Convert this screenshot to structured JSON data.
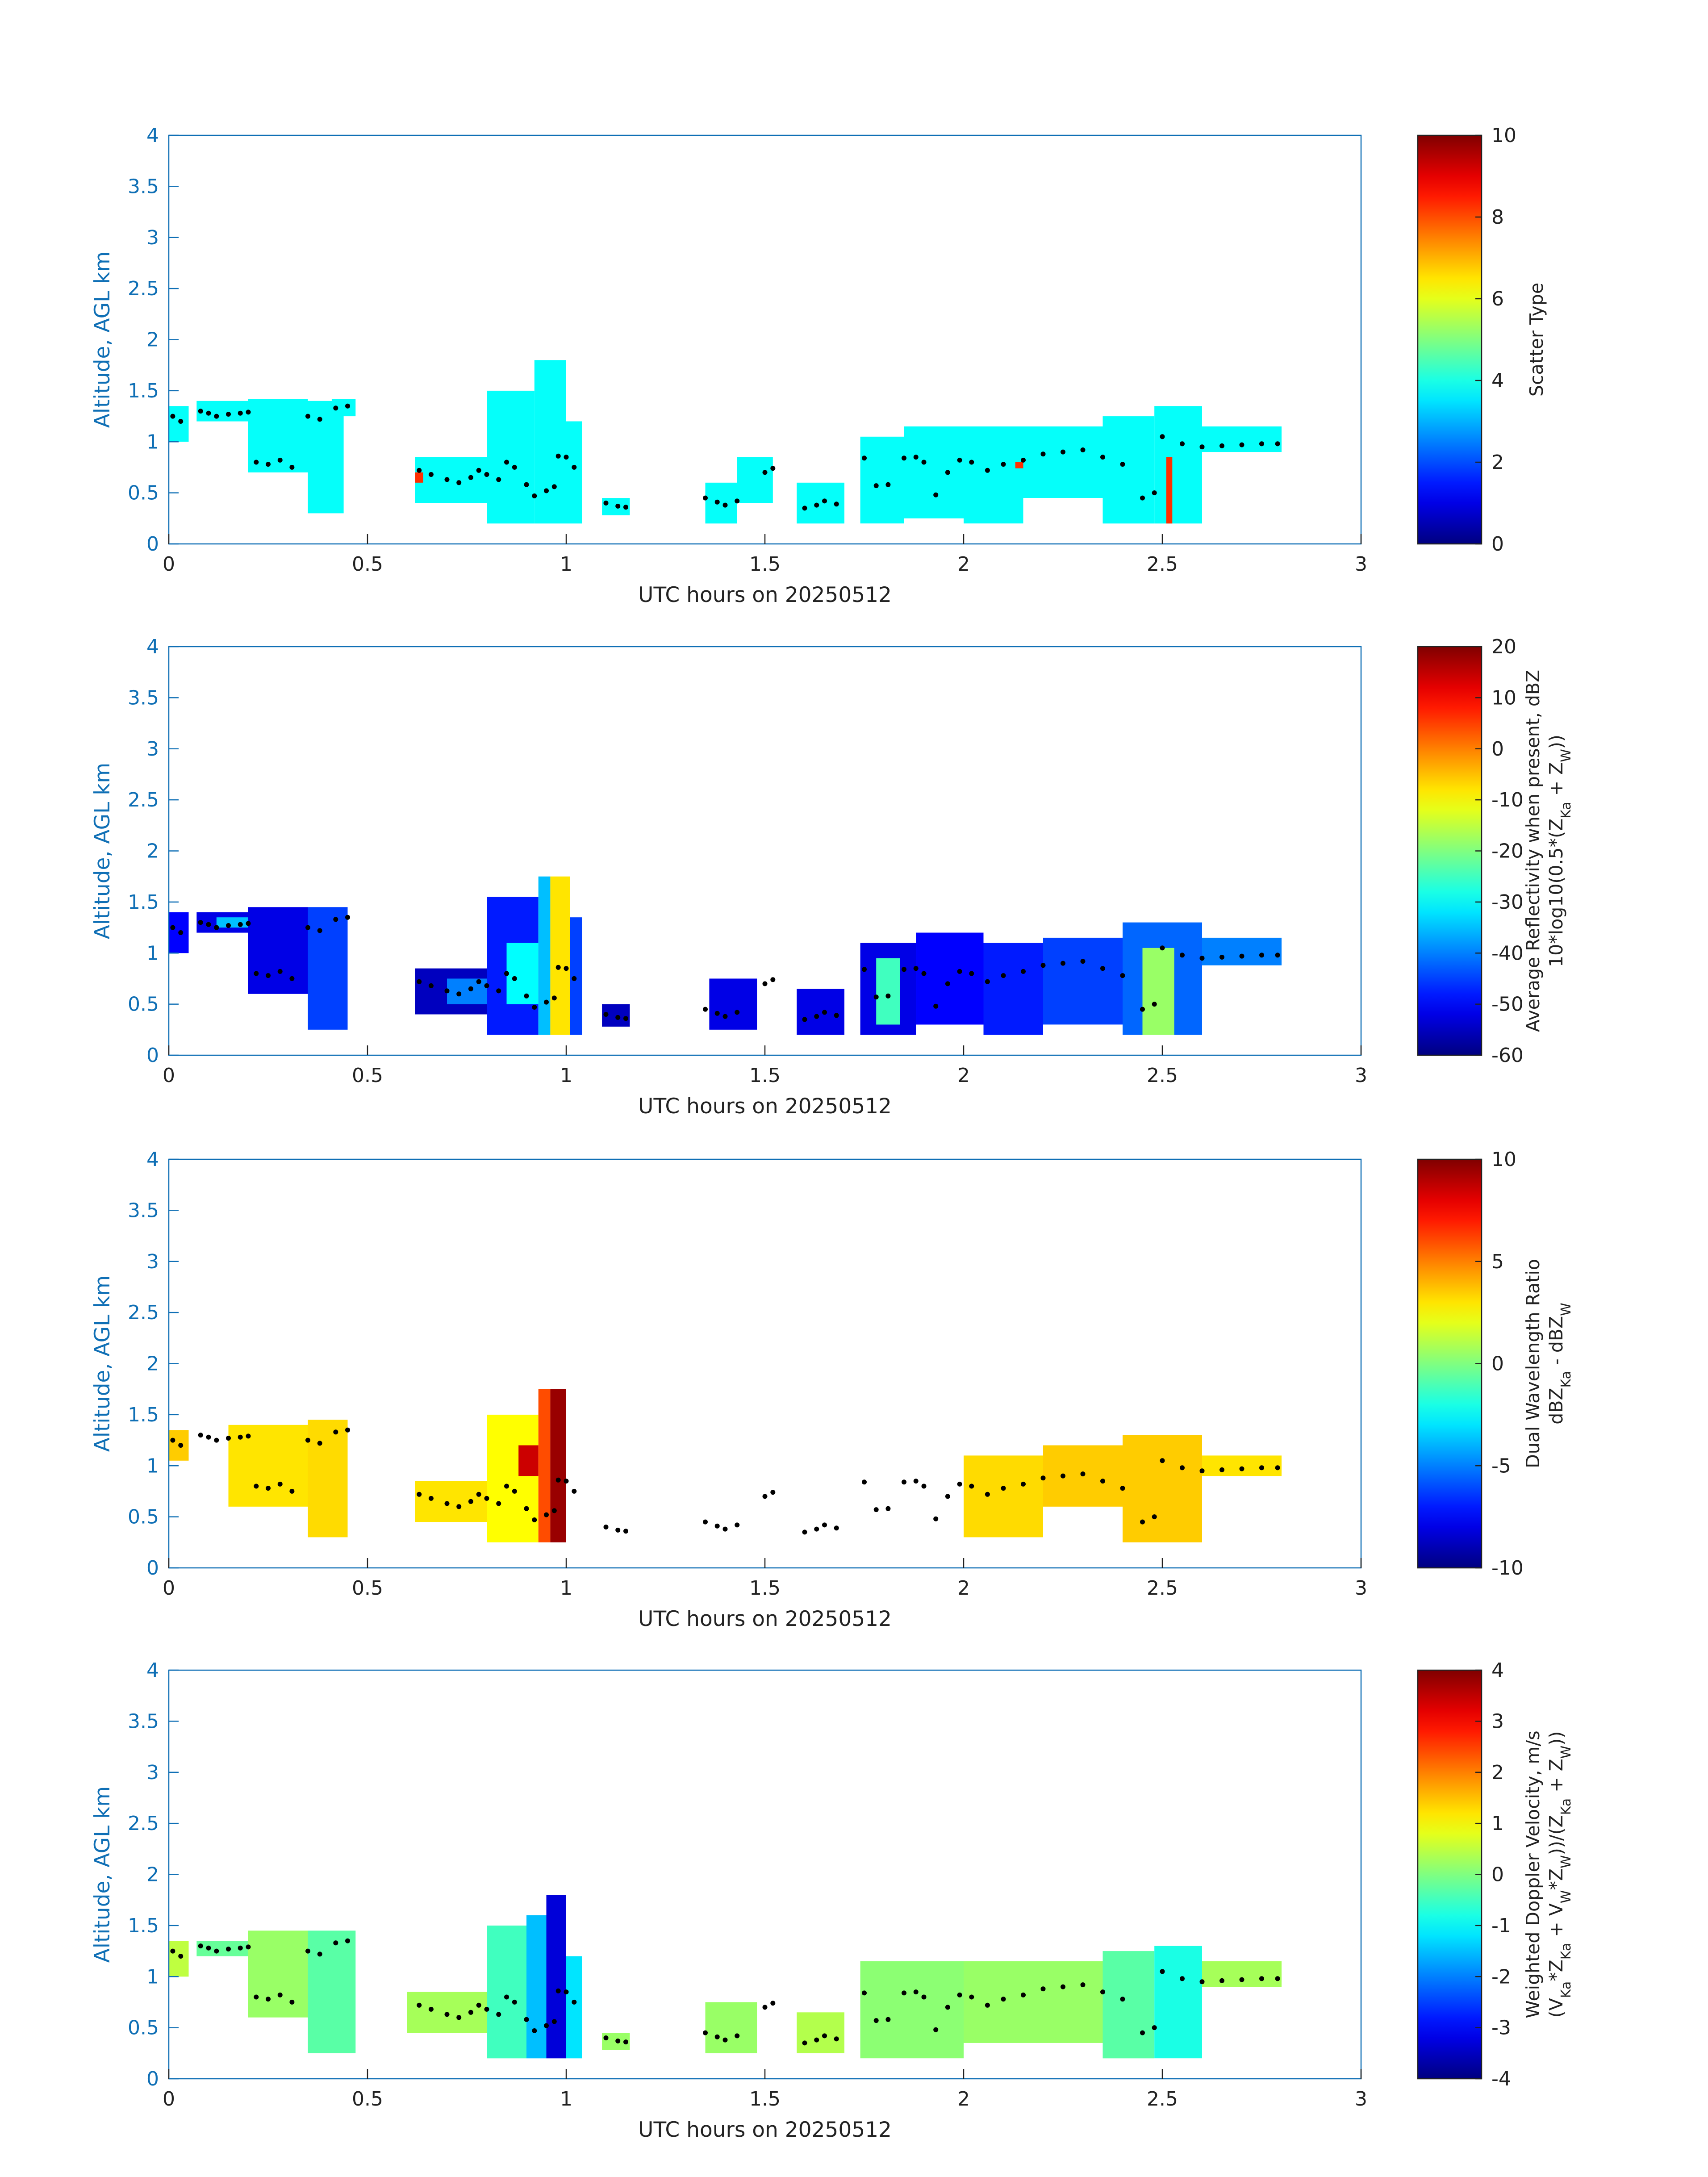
{
  "colors": {
    "axis": "#0f6fb5",
    "text": "#222222",
    "flight_marker": "#000000"
  },
  "chart_data": [
    {
      "type": "heatmap",
      "title": "",
      "xlabel": "UTC hours on 20250512",
      "ylabel": "Altitude, AGL km",
      "xlim": [
        0,
        3
      ],
      "ylim": [
        0,
        4
      ],
      "xticks": [
        "0",
        "0.5",
        "1",
        "1.5",
        "2",
        "2.5",
        "3"
      ],
      "yticks": [
        "0",
        "0.5",
        "1",
        "1.5",
        "2",
        "2.5",
        "3",
        "3.5",
        "4"
      ],
      "colorbar": {
        "label_lines": [
          "Scatter Type"
        ],
        "range": [
          0,
          10
        ],
        "ticks": [
          "0",
          "2",
          "4",
          "6",
          "8",
          "10"
        ],
        "colormap": "jet"
      },
      "regions": [
        {
          "x": [
            0.0,
            0.05
          ],
          "y": [
            1.0,
            1.35
          ],
          "value": 3.8
        },
        {
          "x": [
            0.07,
            0.2
          ],
          "y": [
            1.2,
            1.4
          ],
          "value": 3.8
        },
        {
          "x": [
            0.2,
            0.35
          ],
          "y": [
            0.7,
            1.42
          ],
          "value": 3.8
        },
        {
          "x": [
            0.35,
            0.44
          ],
          "y": [
            0.3,
            1.4
          ],
          "value": 3.8
        },
        {
          "x": [
            0.41,
            0.47
          ],
          "y": [
            1.25,
            1.42
          ],
          "value": 3.8
        },
        {
          "x": [
            0.62,
            0.8
          ],
          "y": [
            0.4,
            0.85
          ],
          "value": 3.8
        },
        {
          "x": [
            0.62,
            0.64
          ],
          "y": [
            0.6,
            0.7
          ],
          "value": 8.3
        },
        {
          "x": [
            0.8,
            0.92
          ],
          "y": [
            0.2,
            1.5
          ],
          "value": 3.8
        },
        {
          "x": [
            0.92,
            1.0
          ],
          "y": [
            0.2,
            1.8
          ],
          "value": 3.8
        },
        {
          "x": [
            1.0,
            1.04
          ],
          "y": [
            0.2,
            1.2
          ],
          "value": 3.8
        },
        {
          "x": [
            1.09,
            1.16
          ],
          "y": [
            0.28,
            0.45
          ],
          "value": 3.8
        },
        {
          "x": [
            1.35,
            1.43
          ],
          "y": [
            0.2,
            0.6
          ],
          "value": 3.8
        },
        {
          "x": [
            1.43,
            1.52
          ],
          "y": [
            0.4,
            0.85
          ],
          "value": 3.8
        },
        {
          "x": [
            1.58,
            1.7
          ],
          "y": [
            0.2,
            0.6
          ],
          "value": 3.8
        },
        {
          "x": [
            1.74,
            1.85
          ],
          "y": [
            0.2,
            1.05
          ],
          "value": 3.8
        },
        {
          "x": [
            1.85,
            2.0
          ],
          "y": [
            0.25,
            1.15
          ],
          "value": 3.8
        },
        {
          "x": [
            2.0,
            2.15
          ],
          "y": [
            0.2,
            1.15
          ],
          "value": 3.8
        },
        {
          "x": [
            2.13,
            2.15
          ],
          "y": [
            0.74,
            0.8
          ],
          "value": 8.3
        },
        {
          "x": [
            2.15,
            2.35
          ],
          "y": [
            0.45,
            1.15
          ],
          "value": 3.8
        },
        {
          "x": [
            2.35,
            2.48
          ],
          "y": [
            0.2,
            1.25
          ],
          "value": 3.8
        },
        {
          "x": [
            2.48,
            2.6
          ],
          "y": [
            0.2,
            1.35
          ],
          "value": 3.8
        },
        {
          "x": [
            2.51,
            2.525
          ],
          "y": [
            0.2,
            0.85
          ],
          "value": 8.3
        },
        {
          "x": [
            2.6,
            2.8
          ],
          "y": [
            0.9,
            1.15
          ],
          "value": 3.8
        }
      ]
    },
    {
      "type": "heatmap",
      "title": "",
      "xlabel": "UTC hours on 20250512",
      "ylabel": "Altitude, AGL km",
      "xlim": [
        0,
        3
      ],
      "ylim": [
        0,
        4
      ],
      "xticks": [
        "0",
        "0.5",
        "1",
        "1.5",
        "2",
        "2.5",
        "3"
      ],
      "yticks": [
        "0",
        "0.5",
        "1",
        "1.5",
        "2",
        "2.5",
        "3",
        "3.5",
        "4"
      ],
      "colorbar": {
        "label_lines": [
          "Average Reflectivity when present, dBZ",
          "10*log10(0.5*(Z",
          "Ka",
          " + Z",
          "W",
          "))"
        ],
        "range": [
          -60,
          20
        ],
        "ticks": [
          "-60",
          "-50",
          "-40",
          "-30",
          "-20",
          "-10",
          "0",
          "10",
          "20"
        ],
        "colormap": "jet"
      },
      "regions": [
        {
          "x": [
            0.0,
            0.05
          ],
          "y": [
            1.0,
            1.4
          ],
          "value": -50
        },
        {
          "x": [
            0.07,
            0.2
          ],
          "y": [
            1.2,
            1.4
          ],
          "value": -52
        },
        {
          "x": [
            0.12,
            0.25
          ],
          "y": [
            1.25,
            1.35
          ],
          "value": -35
        },
        {
          "x": [
            0.2,
            0.35
          ],
          "y": [
            0.6,
            1.45
          ],
          "value": -52
        },
        {
          "x": [
            0.35,
            0.45
          ],
          "y": [
            0.25,
            1.45
          ],
          "value": -45
        },
        {
          "x": [
            0.62,
            0.8
          ],
          "y": [
            0.4,
            0.85
          ],
          "value": -55
        },
        {
          "x": [
            0.7,
            0.8
          ],
          "y": [
            0.5,
            0.75
          ],
          "value": -40
        },
        {
          "x": [
            0.8,
            0.93
          ],
          "y": [
            0.2,
            1.55
          ],
          "value": -48
        },
        {
          "x": [
            0.85,
            0.93
          ],
          "y": [
            0.5,
            1.1
          ],
          "value": -30
        },
        {
          "x": [
            0.93,
            0.96
          ],
          "y": [
            0.2,
            1.75
          ],
          "value": -35
        },
        {
          "x": [
            0.96,
            1.01
          ],
          "y": [
            0.2,
            1.75
          ],
          "value": -8
        },
        {
          "x": [
            1.01,
            1.04
          ],
          "y": [
            0.2,
            1.35
          ],
          "value": -45
        },
        {
          "x": [
            1.09,
            1.16
          ],
          "y": [
            0.28,
            0.5
          ],
          "value": -55
        },
        {
          "x": [
            1.36,
            1.48
          ],
          "y": [
            0.25,
            0.75
          ],
          "value": -52
        },
        {
          "x": [
            1.58,
            1.7
          ],
          "y": [
            0.2,
            0.65
          ],
          "value": -52
        },
        {
          "x": [
            1.74,
            1.88
          ],
          "y": [
            0.2,
            1.1
          ],
          "value": -52
        },
        {
          "x": [
            1.78,
            1.84
          ],
          "y": [
            0.3,
            0.95
          ],
          "value": -25
        },
        {
          "x": [
            1.88,
            2.05
          ],
          "y": [
            0.3,
            1.2
          ],
          "value": -50
        },
        {
          "x": [
            2.05,
            2.2
          ],
          "y": [
            0.2,
            1.1
          ],
          "value": -48
        },
        {
          "x": [
            2.2,
            2.4
          ],
          "y": [
            0.3,
            1.15
          ],
          "value": -45
        },
        {
          "x": [
            2.4,
            2.6
          ],
          "y": [
            0.2,
            1.3
          ],
          "value": -42
        },
        {
          "x": [
            2.45,
            2.53
          ],
          "y": [
            0.2,
            1.05
          ],
          "value": -18
        },
        {
          "x": [
            2.6,
            2.8
          ],
          "y": [
            0.88,
            1.15
          ],
          "value": -40
        }
      ]
    },
    {
      "type": "heatmap",
      "title": "",
      "xlabel": "UTC hours on 20250512",
      "ylabel": "Altitude, AGL km",
      "xlim": [
        0,
        3
      ],
      "ylim": [
        0,
        4
      ],
      "xticks": [
        "0",
        "0.5",
        "1",
        "1.5",
        "2",
        "2.5",
        "3"
      ],
      "yticks": [
        "0",
        "0.5",
        "1",
        "1.5",
        "2",
        "2.5",
        "3",
        "3.5",
        "4"
      ],
      "colorbar": {
        "label_lines": [
          "Dual Wavelength Ratio",
          "dBZ",
          "Ka",
          " - dBZ",
          "W"
        ],
        "range": [
          -10,
          10
        ],
        "ticks": [
          "-10",
          "-5",
          "0",
          "5",
          "10"
        ],
        "colormap": "jet"
      },
      "regions": [
        {
          "x": [
            0.0,
            0.05
          ],
          "y": [
            1.05,
            1.35
          ],
          "value": 3.5
        },
        {
          "x": [
            0.15,
            0.35
          ],
          "y": [
            0.6,
            1.4
          ],
          "value": 3.0
        },
        {
          "x": [
            0.35,
            0.45
          ],
          "y": [
            0.3,
            1.45
          ],
          "value": 3.2
        },
        {
          "x": [
            0.62,
            0.8
          ],
          "y": [
            0.45,
            0.85
          ],
          "value": 3.0
        },
        {
          "x": [
            0.8,
            0.93
          ],
          "y": [
            0.25,
            1.5
          ],
          "value": 2.5
        },
        {
          "x": [
            0.88,
            0.93
          ],
          "y": [
            0.9,
            1.2
          ],
          "value": 8.5
        },
        {
          "x": [
            0.93,
            0.96
          ],
          "y": [
            0.25,
            1.75
          ],
          "value": 6.0
        },
        {
          "x": [
            0.96,
            1.0
          ],
          "y": [
            0.25,
            1.75
          ],
          "value": 9.5
        },
        {
          "x": [
            2.0,
            2.2
          ],
          "y": [
            0.3,
            1.1
          ],
          "value": 3.2
        },
        {
          "x": [
            2.2,
            2.4
          ],
          "y": [
            0.6,
            1.2
          ],
          "value": 3.5
        },
        {
          "x": [
            2.4,
            2.6
          ],
          "y": [
            0.25,
            1.3
          ],
          "value": 3.5
        },
        {
          "x": [
            2.6,
            2.8
          ],
          "y": [
            0.9,
            1.1
          ],
          "value": 3.0
        }
      ]
    },
    {
      "type": "heatmap",
      "title": "",
      "xlabel": "UTC hours on 20250512",
      "ylabel": "Altitude, AGL km",
      "xlim": [
        0,
        3
      ],
      "ylim": [
        0,
        4
      ],
      "xticks": [
        "0",
        "0.5",
        "1",
        "1.5",
        "2",
        "2.5",
        "3"
      ],
      "yticks": [
        "0",
        "0.5",
        "1",
        "1.5",
        "2",
        "2.5",
        "3",
        "3.5",
        "4"
      ],
      "colorbar": {
        "label_lines": [
          "Weighted Doppler Velocity, m/s",
          "(V",
          "Ka",
          "*Z",
          "Ka",
          " + V",
          "W",
          "*Z",
          "W",
          "))/(Z",
          "Ka",
          " + Z",
          "W",
          "))"
        ],
        "range": [
          -4,
          4
        ],
        "ticks": [
          "-4",
          "-3",
          "-2",
          "-1",
          "0",
          "1",
          "2",
          "3",
          "4"
        ],
        "colormap": "jet"
      },
      "regions": [
        {
          "x": [
            0.0,
            0.05
          ],
          "y": [
            1.0,
            1.35
          ],
          "value": 0.5
        },
        {
          "x": [
            0.07,
            0.2
          ],
          "y": [
            1.2,
            1.35
          ],
          "value": -0.2
        },
        {
          "x": [
            0.2,
            0.35
          ],
          "y": [
            0.6,
            1.45
          ],
          "value": 0.2
        },
        {
          "x": [
            0.35,
            0.47
          ],
          "y": [
            0.25,
            1.45
          ],
          "value": -0.3
        },
        {
          "x": [
            0.6,
            0.8
          ],
          "y": [
            0.45,
            0.85
          ],
          "value": 0.3
        },
        {
          "x": [
            0.8,
            0.9
          ],
          "y": [
            0.2,
            1.5
          ],
          "value": -0.5
        },
        {
          "x": [
            0.9,
            0.95
          ],
          "y": [
            0.2,
            1.6
          ],
          "value": -1.5
        },
        {
          "x": [
            0.95,
            1.0
          ],
          "y": [
            0.2,
            1.8
          ],
          "value": -3.3
        },
        {
          "x": [
            1.0,
            1.04
          ],
          "y": [
            0.2,
            1.2
          ],
          "value": -1.2
        },
        {
          "x": [
            1.09,
            1.16
          ],
          "y": [
            0.28,
            0.45
          ],
          "value": 0.2
        },
        {
          "x": [
            1.35,
            1.48
          ],
          "y": [
            0.25,
            0.75
          ],
          "value": 0.2
        },
        {
          "x": [
            1.58,
            1.7
          ],
          "y": [
            0.25,
            0.65
          ],
          "value": 0.4
        },
        {
          "x": [
            1.74,
            2.0
          ],
          "y": [
            0.2,
            1.15
          ],
          "value": 0.1
        },
        {
          "x": [
            2.0,
            2.35
          ],
          "y": [
            0.35,
            1.15
          ],
          "value": 0.2
        },
        {
          "x": [
            2.35,
            2.48
          ],
          "y": [
            0.2,
            1.25
          ],
          "value": -0.3
        },
        {
          "x": [
            2.48,
            2.6
          ],
          "y": [
            0.2,
            1.3
          ],
          "value": -0.8
        },
        {
          "x": [
            2.6,
            2.8
          ],
          "y": [
            0.9,
            1.15
          ],
          "value": 0.3
        }
      ]
    }
  ],
  "flight_track": {
    "x": [
      0.01,
      0.03,
      0.08,
      0.1,
      0.12,
      0.15,
      0.18,
      0.2,
      0.22,
      0.25,
      0.28,
      0.31,
      0.35,
      0.38,
      0.42,
      0.45,
      0.63,
      0.66,
      0.7,
      0.73,
      0.76,
      0.78,
      0.8,
      0.83,
      0.85,
      0.87,
      0.9,
      0.92,
      0.95,
      0.97,
      0.98,
      1.0,
      1.02,
      1.1,
      1.13,
      1.15,
      1.35,
      1.38,
      1.4,
      1.43,
      1.5,
      1.52,
      1.6,
      1.63,
      1.65,
      1.68,
      1.75,
      1.78,
      1.81,
      1.85,
      1.88,
      1.9,
      1.93,
      1.96,
      1.99,
      2.02,
      2.06,
      2.1,
      2.15,
      2.2,
      2.25,
      2.3,
      2.35,
      2.4,
      2.45,
      2.48,
      2.5,
      2.55,
      2.6,
      2.65,
      2.7,
      2.75,
      2.79
    ],
    "y": [
      1.25,
      1.2,
      1.3,
      1.28,
      1.25,
      1.27,
      1.28,
      1.29,
      0.8,
      0.78,
      0.82,
      0.75,
      1.25,
      1.22,
      1.33,
      1.35,
      0.72,
      0.68,
      0.63,
      0.6,
      0.65,
      0.72,
      0.68,
      0.63,
      0.8,
      0.75,
      0.58,
      0.47,
      0.52,
      0.56,
      0.86,
      0.85,
      0.75,
      0.4,
      0.37,
      0.36,
      0.45,
      0.41,
      0.38,
      0.42,
      0.7,
      0.74,
      0.35,
      0.38,
      0.42,
      0.39,
      0.84,
      0.57,
      0.58,
      0.84,
      0.85,
      0.8,
      0.48,
      0.7,
      0.82,
      0.8,
      0.72,
      0.78,
      0.82,
      0.88,
      0.9,
      0.92,
      0.85,
      0.78,
      0.45,
      0.5,
      1.05,
      0.98,
      0.95,
      0.96,
      0.97,
      0.98,
      0.98
    ]
  }
}
